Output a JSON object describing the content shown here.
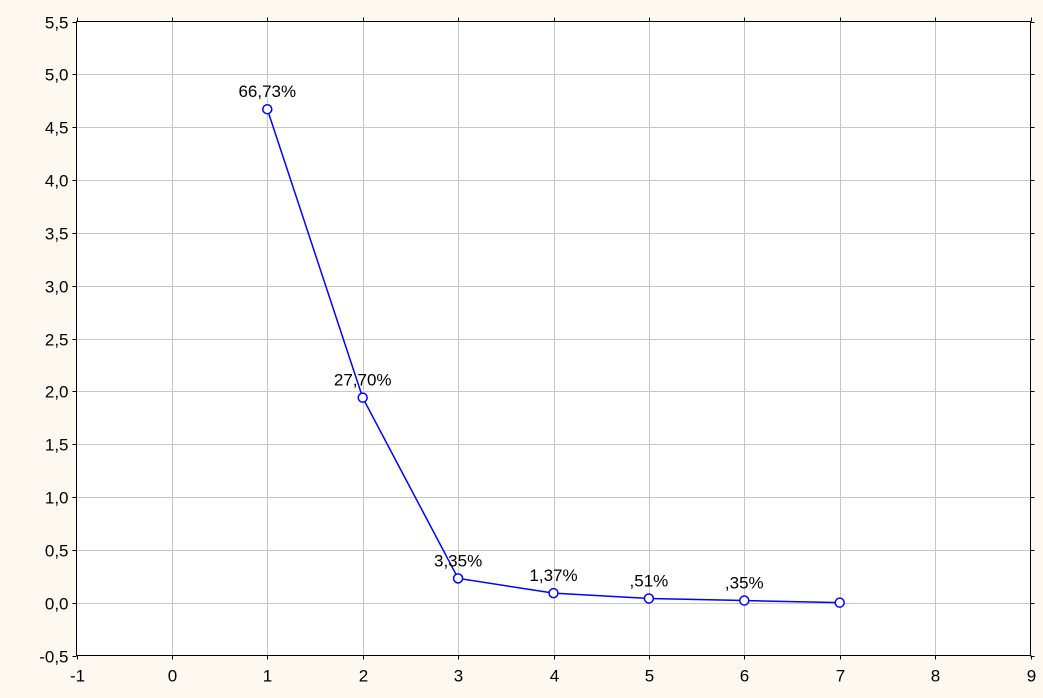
{
  "chart_data": {
    "type": "line",
    "title": "",
    "xlabel": "",
    "ylabel": "",
    "xlim": [
      -1,
      9
    ],
    "ylim": [
      -0.5,
      5.5
    ],
    "x_ticks": [
      -1,
      0,
      1,
      2,
      3,
      4,
      5,
      6,
      7,
      8,
      9
    ],
    "x_tick_labels": [
      "-1",
      "0",
      "1",
      "2",
      "3",
      "4",
      "5",
      "6",
      "7",
      "8",
      "9"
    ],
    "y_ticks": [
      -0.5,
      0.0,
      0.5,
      1.0,
      1.5,
      2.0,
      2.5,
      3.0,
      3.5,
      4.0,
      4.5,
      5.0,
      5.5
    ],
    "y_tick_labels": [
      "-0,5",
      "0,0",
      "0,5",
      "1,0",
      "1,5",
      "2,0",
      "2,5",
      "3,0",
      "3,5",
      "4,0",
      "4,5",
      "5,0",
      "5,5"
    ],
    "grid": true,
    "series": [
      {
        "color": "#0000ff",
        "marker": "circle",
        "x": [
          1,
          2,
          3,
          4,
          5,
          6,
          7
        ],
        "y": [
          4.67,
          1.94,
          0.23,
          0.09,
          0.04,
          0.02,
          0.0
        ],
        "data_labels": [
          "66,73%",
          "27,70%",
          "3,35%",
          "1,37%",
          ",51%",
          ",35%",
          ""
        ]
      }
    ]
  }
}
